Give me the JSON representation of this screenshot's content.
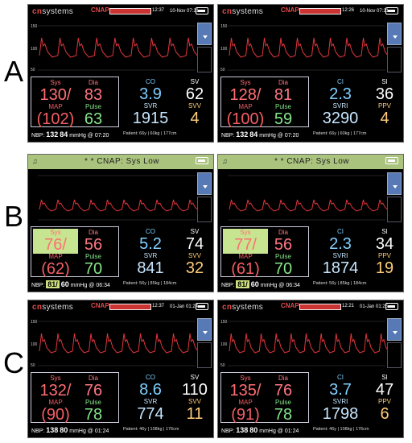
{
  "row_labels": [
    "A",
    "B",
    "C"
  ],
  "common": {
    "brand_cn": "cn",
    "brand_rest": "systems",
    "logo": "CNAP",
    "bp_unit": "mmHg",
    "nbp_label": "NBP:",
    "scale": [
      "150",
      "100",
      "50"
    ],
    "labels": {
      "sys": "Sys",
      "dia": "Dia",
      "map": "MAP",
      "pulse": "Pulse",
      "co": "CO",
      "sv": "SV",
      "svr": "SVR",
      "svv": "SVV",
      "ci": "CI",
      "si": "SI",
      "svri": "SVRI",
      "ppv": "PPV"
    }
  },
  "monitors": [
    {
      "id": "A-left",
      "alarm": "",
      "time": "12:37",
      "date": "10-Nov 07:21",
      "sys": "130/",
      "dia": "83",
      "map": "(102)",
      "pulse": "63",
      "p1l": "CO",
      "p1": "3.9",
      "p2l": "SV",
      "p2": "62",
      "p3l": "SVR",
      "p3": "1915",
      "p4l": "SVV",
      "p4": "4",
      "nbp_sys": "132",
      "nbp_dia": "84",
      "nbp_time": "mmHg @ 07:20",
      "patient": "Patient:  66y | 60kg | 177cm"
    },
    {
      "id": "A-right",
      "alarm": "",
      "time": "12:26",
      "date": "10-Nov 07:21",
      "sys": "128/",
      "dia": "81",
      "map": "(100)",
      "pulse": "59",
      "p1l": "CI",
      "p1": "2.3",
      "p2l": "SI",
      "p2": "36",
      "p3l": "SVRI",
      "p3": "3290",
      "p4l": "PPV",
      "p4": "4",
      "nbp_sys": "132",
      "nbp_dia": "84",
      "nbp_time": "mmHg @ 07:20",
      "patient": "Patient:  66y | 60kg | 177cm"
    },
    {
      "id": "B-left",
      "alarm": "* * CNAP: Sys Low",
      "time": "",
      "date": "",
      "sys": "76/",
      "dia": "56",
      "map": "(62)",
      "pulse": "70",
      "p1l": "CO",
      "p1": "5.2",
      "p2l": "SV",
      "p2": "74",
      "p3l": "SVR",
      "p3": "841",
      "p4l": "SVV",
      "p4": "32",
      "nbp_sys": "81/",
      "nbp_dia": "60",
      "nbp_time": "mmHg @ 06:34",
      "patient": "Patient:  56y | 85kg | 184cm"
    },
    {
      "id": "B-right",
      "alarm": "* * CNAP: Sys Low",
      "time": "",
      "date": "",
      "sys": "77/",
      "dia": "56",
      "map": "(61)",
      "pulse": "70",
      "p1l": "CI",
      "p1": "2.3",
      "p2l": "SI",
      "p2": "34",
      "p3l": "SVRI",
      "p3": "1874",
      "p4l": "PPV",
      "p4": "19",
      "nbp_sys": "81/",
      "nbp_dia": "60",
      "nbp_time": "mmHg @ 06:34",
      "patient": "Patient:  56y | 85kg | 184cm"
    },
    {
      "id": "C-left",
      "alarm": "",
      "time": "12:37",
      "date": "01-Jan 01:24",
      "sys": "132/",
      "dia": "76",
      "map": "(90)",
      "pulse": "78",
      "p1l": "CO",
      "p1": "8.6",
      "p2l": "SV",
      "p2": "110",
      "p3l": "SVR",
      "p3": "774",
      "p4l": "SVV",
      "p4": "11",
      "nbp_sys": "138",
      "nbp_dia": "80",
      "nbp_time": "mmHg @ 01:24",
      "patient": "Patient:  46y | 108kg | 176cm"
    },
    {
      "id": "C-right",
      "alarm": "",
      "time": "12:21",
      "date": "01-Jan 01:25",
      "sys": "135/",
      "dia": "76",
      "map": "(91)",
      "pulse": "78",
      "p1l": "CI",
      "p1": "3.7",
      "p2l": "SI",
      "p2": "47",
      "p3l": "SVRI",
      "p3": "1798",
      "p4l": "PPV",
      "p4": "6",
      "nbp_sys": "138",
      "nbp_dia": "80",
      "nbp_time": "mmHg @ 01:24",
      "patient": "Patient:  46y | 108kg | 176cm"
    }
  ]
}
